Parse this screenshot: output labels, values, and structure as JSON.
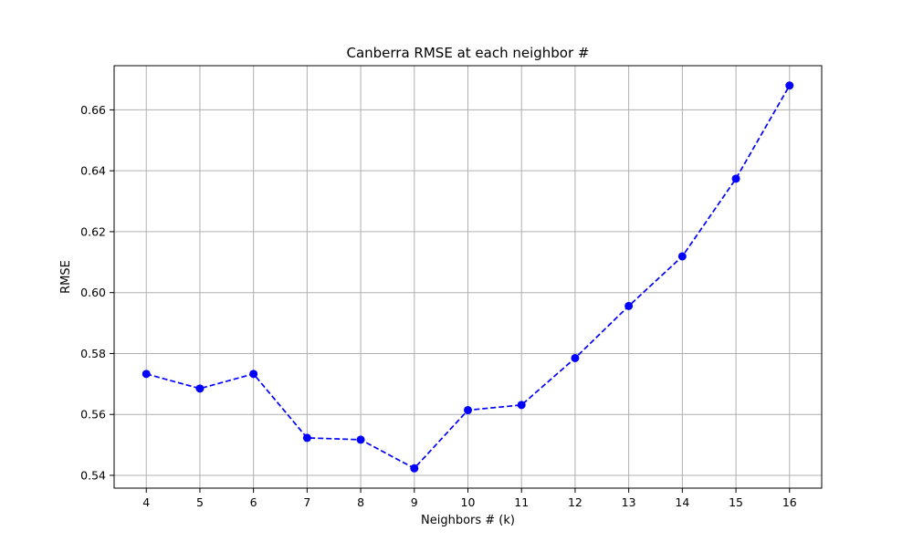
{
  "chart_data": {
    "type": "line",
    "title": "Canberra RMSE at each neighbor #",
    "xlabel": "Neighbors # (k)",
    "ylabel": "RMSE",
    "x": [
      4,
      5,
      6,
      7,
      8,
      9,
      10,
      11,
      12,
      13,
      14,
      15,
      16
    ],
    "series": [
      {
        "values": [
          0.5733,
          0.5685,
          0.5733,
          0.5523,
          0.5517,
          0.5423,
          0.5614,
          0.5631,
          0.5785,
          0.5956,
          0.6119,
          0.6374,
          0.668
        ]
      }
    ],
    "xlim": [
      3.4,
      16.6
    ],
    "ylim": [
      0.5358,
      0.6745
    ],
    "xticks": [
      4,
      5,
      6,
      7,
      8,
      9,
      10,
      11,
      12,
      13,
      14,
      15,
      16
    ],
    "yticks": [
      0.54,
      0.56,
      0.58,
      0.6,
      0.62,
      0.64,
      0.66
    ],
    "ytick_labels": [
      "0.54",
      "0.56",
      "0.58",
      "0.60",
      "0.62",
      "0.64",
      "0.66"
    ],
    "grid": true,
    "line_style": "dashed",
    "marker": "circle",
    "color": "#0000ff"
  }
}
